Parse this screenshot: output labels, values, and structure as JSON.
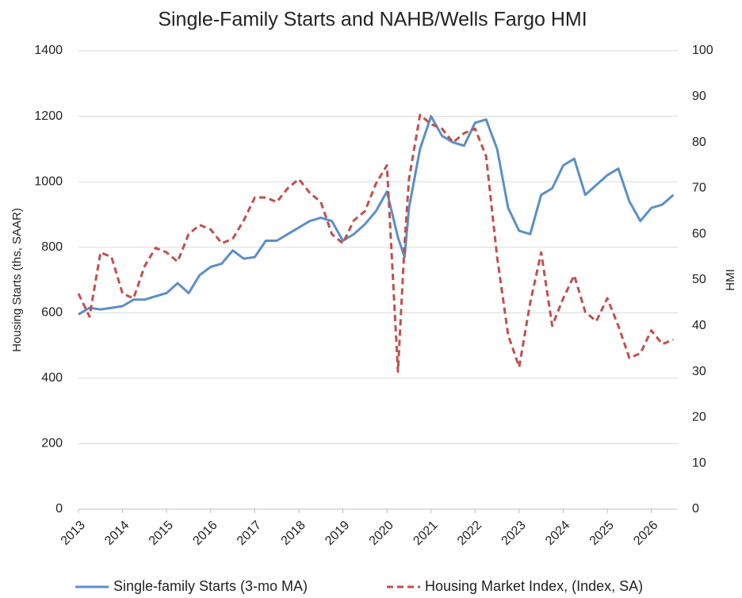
{
  "chart_data": {
    "type": "line",
    "title": "Single-Family Starts and NAHB/Wells Fargo HMI",
    "y_label": "Housing Starts (ths, SAAR)",
    "y2_label": "HMI",
    "x": [
      2013.0,
      2013.25,
      2013.5,
      2013.75,
      2014.0,
      2014.25,
      2014.5,
      2014.75,
      2015.0,
      2015.25,
      2015.5,
      2015.75,
      2016.0,
      2016.25,
      2016.5,
      2016.75,
      2017.0,
      2017.25,
      2017.5,
      2017.75,
      2018.0,
      2018.25,
      2018.5,
      2018.75,
      2019.0,
      2019.25,
      2019.5,
      2019.75,
      2020.0,
      2020.25,
      2020.4,
      2020.5,
      2020.75,
      2021.0,
      2021.25,
      2021.5,
      2021.75,
      2022.0,
      2022.25,
      2022.5,
      2022.75,
      2023.0,
      2023.25,
      2023.5,
      2023.75,
      2024.0,
      2024.25,
      2024.5,
      2024.75,
      2025.0,
      2025.25,
      2025.5,
      2025.75,
      2026.0,
      2026.25,
      2026.5
    ],
    "series": [
      {
        "name": "Single-family Starts (3-mo MA)",
        "color": "#5b8fc9",
        "dash": false,
        "values": [
          595,
          615,
          610,
          615,
          620,
          640,
          640,
          650,
          660,
          690,
          660,
          715,
          740,
          750,
          790,
          765,
          770,
          820,
          820,
          840,
          860,
          880,
          890,
          880,
          820,
          840,
          870,
          910,
          970,
          830,
          770,
          920,
          1100,
          1200,
          1140,
          1120,
          1110,
          1180,
          1190,
          1100,
          920,
          850,
          840,
          960,
          980,
          1050,
          1070,
          960,
          990,
          1020,
          1040,
          940,
          880,
          920,
          930,
          960
        ]
      },
      {
        "name": "Housing Market Index, (Index, SA)",
        "color": "#c0504d",
        "dash": true,
        "axis": "y2",
        "values": [
          47,
          42,
          56,
          55,
          47,
          46,
          53,
          57,
          56,
          54,
          60,
          62,
          61,
          58,
          59,
          63,
          68,
          68,
          67,
          70,
          72,
          69,
          67,
          60,
          58,
          63,
          65,
          71,
          75,
          30,
          58,
          72,
          86,
          84,
          83,
          80,
          82,
          83,
          77,
          55,
          38,
          31,
          45,
          56,
          40,
          46,
          51,
          43,
          41,
          46,
          40,
          33,
          34,
          39,
          36,
          37
        ]
      }
    ],
    "xlim": [
      2013,
      2026.6
    ],
    "xticks": [
      2013,
      2014,
      2015,
      2016,
      2017,
      2018,
      2019,
      2020,
      2021,
      2022,
      2023,
      2024,
      2025,
      2026
    ],
    "ylim": [
      0,
      1400
    ],
    "yticks": [
      0,
      200,
      400,
      600,
      800,
      1000,
      1200,
      1400
    ],
    "y2lim": [
      0,
      100
    ],
    "y2ticks": [
      0,
      10,
      20,
      30,
      40,
      50,
      60,
      70,
      80,
      90,
      100
    ],
    "grid": true
  }
}
